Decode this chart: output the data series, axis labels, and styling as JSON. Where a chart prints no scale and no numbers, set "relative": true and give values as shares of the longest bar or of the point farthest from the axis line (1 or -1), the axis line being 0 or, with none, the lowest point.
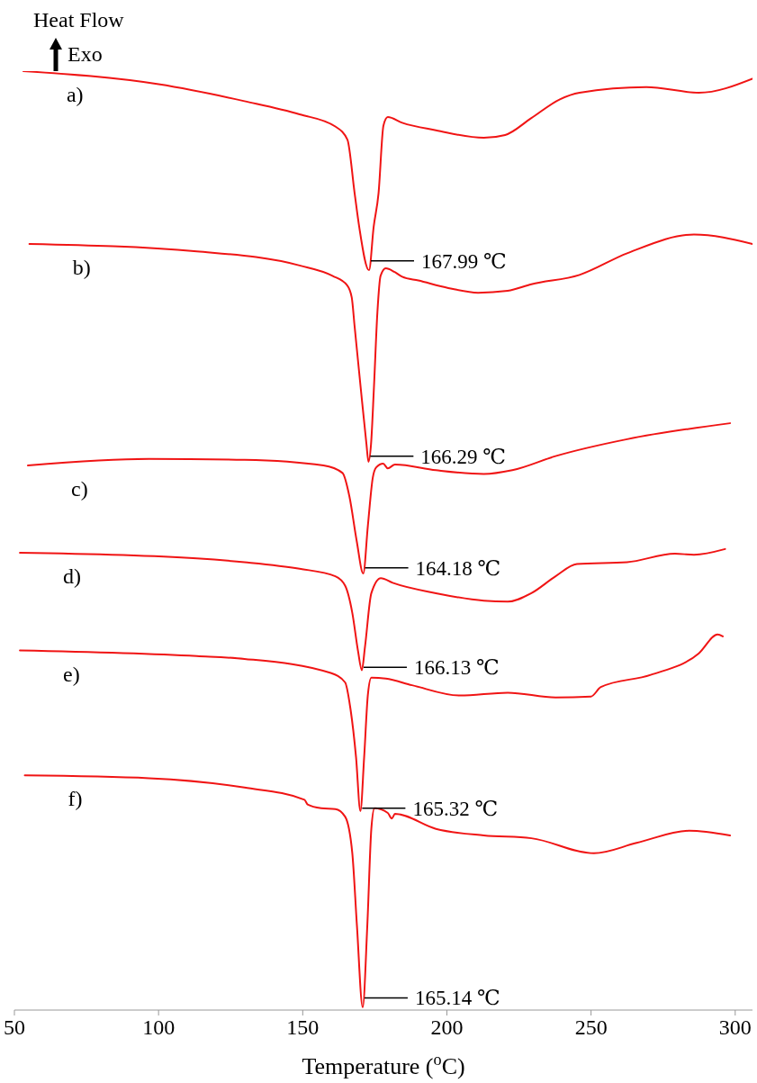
{
  "chart_data": {
    "type": "line",
    "relative": true,
    "ylabel": "Heat Flow",
    "xlabel": "Temperature ($^{o}$C)",
    "xlim": [
      50,
      306
    ],
    "xticks": [
      50,
      100,
      150,
      200,
      250,
      300
    ],
    "marker": "none",
    "series": [
      {
        "name": "a)",
        "color": "#f01414",
        "x": [
          53.1,
          100.0,
          129.8,
          148.9,
          161.3,
          165.5,
          168.0,
          169.6,
          173.0,
          174.6,
          176.3,
          178.0,
          179.5,
          184.5,
          196.2,
          212.8,
          220.2,
          229.3,
          239.2,
          246.0,
          269.2,
          287.4,
          306.0
        ],
        "values": [
          1.0,
          0.986,
          0.968,
          0.954,
          0.941,
          0.927,
          0.87,
          0.834,
          0.788,
          0.834,
          0.87,
          0.942,
          0.951,
          0.945,
          0.937,
          0.929,
          0.932,
          0.95,
          0.97,
          0.977,
          0.983,
          0.977,
          0.992
        ]
      },
      {
        "name": "b)",
        "color": "#f01414",
        "x": [
          55.2,
          113.3,
          148.9,
          160.3,
          165.4,
          167.0,
          168.0,
          170.1,
          172.1,
          172.8,
          173.7,
          174.7,
          175.9,
          177.0,
          178.8,
          181.9,
          184.5,
          190.1,
          200.5,
          210.8,
          221.1,
          229.3,
          246.0,
          262.5,
          285.7,
          306.0
        ],
        "values": [
          0.816,
          0.808,
          0.793,
          0.782,
          0.772,
          0.759,
          0.728,
          0.663,
          0.603,
          0.584,
          0.603,
          0.663,
          0.743,
          0.782,
          0.79,
          0.786,
          0.781,
          0.777,
          0.769,
          0.764,
          0.766,
          0.773,
          0.783,
          0.806,
          0.826,
          0.816
        ]
      },
      {
        "name": "c)",
        "color": "#f01414",
        "x": [
          54.7,
          96.7,
          129.8,
          157.2,
          163.8,
          166.2,
          168.7,
          171.0,
          172.6,
          174.3,
          175.5,
          177.9,
          179.5,
          182.0,
          196.2,
          212.8,
          222.7,
          237.7,
          262.5,
          298.2
        ],
        "values": [
          0.58,
          0.587,
          0.586,
          0.58,
          0.572,
          0.547,
          0.5,
          0.465,
          0.516,
          0.567,
          0.578,
          0.582,
          0.577,
          0.581,
          0.575,
          0.571,
          0.575,
          0.59,
          0.608,
          0.625
        ]
      },
      {
        "name": "d)",
        "color": "#f01414",
        "x": [
          51.9,
          113.3,
          129.8,
          148.9,
          161.3,
          164.7,
          167.2,
          169.2,
          170.5,
          171.6,
          173.8,
          177.1,
          181.2,
          196.2,
          212.8,
          221.1,
          229.3,
          237.7,
          245.1,
          262.5,
          279.1,
          285.7,
          296.5
        ],
        "values": [
          0.487,
          0.481,
          0.477,
          0.47,
          0.462,
          0.452,
          0.423,
          0.382,
          0.362,
          0.387,
          0.444,
          0.46,
          0.455,
          0.444,
          0.436,
          0.435,
          0.444,
          0.462,
          0.475,
          0.477,
          0.486,
          0.485,
          0.491
        ]
      },
      {
        "name": "e)",
        "color": "#f01414",
        "x": [
          51.9,
          113.3,
          129.8,
          159.7,
          164.7,
          166.6,
          168.5,
          170.0,
          171.3,
          172.6,
          173.8,
          178.8,
          187.9,
          204.5,
          221.1,
          237.7,
          250.0,
          253.4,
          270.7,
          287.4,
          293.9,
          295.7
        ],
        "values": [
          0.383,
          0.377,
          0.374,
          0.359,
          0.349,
          0.32,
          0.269,
          0.212,
          0.269,
          0.336,
          0.354,
          0.353,
          0.346,
          0.335,
          0.338,
          0.333,
          0.334,
          0.344,
          0.357,
          0.38,
          0.4,
          0.398
        ]
      },
      {
        "name": "f)",
        "color": "#f01414",
        "x": [
          53.6,
          96.7,
          129.8,
          150.6,
          151.7,
          156.4,
          161.3,
          164.7,
          167.2,
          168.8,
          170.8,
          172.4,
          173.8,
          174.9,
          179.5,
          180.9,
          182.0,
          196.2,
          212.8,
          229.3,
          251.0,
          265.8,
          284.0,
          298.2
        ],
        "values": [
          0.25,
          0.247,
          0.237,
          0.224,
          0.219,
          0.215,
          0.214,
          0.206,
          0.167,
          0.09,
          0.003,
          0.09,
          0.193,
          0.215,
          0.21,
          0.204,
          0.209,
          0.193,
          0.186,
          0.183,
          0.167,
          0.178,
          0.191,
          0.186
        ]
      }
    ],
    "annotations": [
      "Exo",
      {
        "text": "167.99 ℃",
        "x": 173.0,
        "y": 0.798
      },
      {
        "text": "166.29 ℃",
        "x": 172.8,
        "y": 0.59
      },
      {
        "text": "164.18 ℃",
        "x": 171.0,
        "y": 0.471
      },
      {
        "text": "166.13 ℃",
        "x": 170.5,
        "y": 0.365
      },
      {
        "text": "165.32 ℃",
        "x": 170.0,
        "y": 0.215
      },
      {
        "text": "165.14 ℃",
        "x": 170.8,
        "y": 0.013
      }
    ]
  }
}
